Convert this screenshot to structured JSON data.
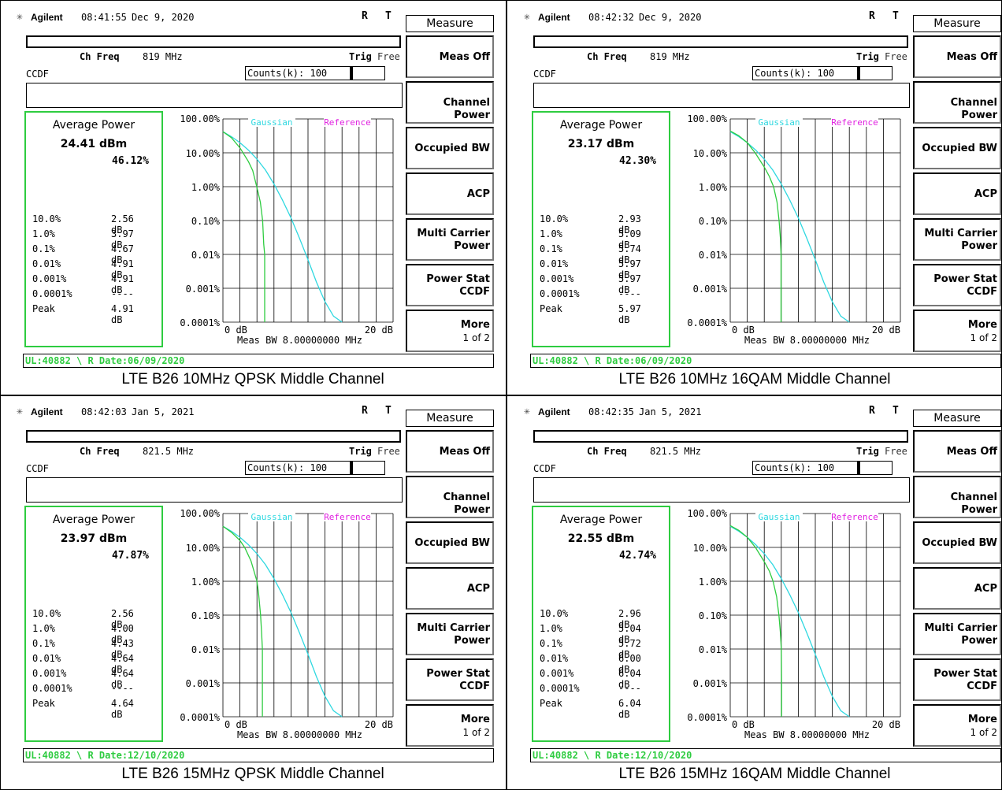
{
  "panels": [
    {
      "brand": "Agilent",
      "time": "08:41:55",
      "date": "Dec 9, 2020",
      "r": "R",
      "t": "T",
      "ch_freq_label": "Ch Freq",
      "ch_freq_value": "819 MHz",
      "trig_label": "Trig",
      "trig_value": "Free",
      "mode_label": "CCDF",
      "counts_label": "Counts(k): 100",
      "avg_power_label": "Average Power",
      "avg_power_value": "24.41 dBm",
      "avg_pct": "46.12%",
      "stats": [
        {
          "k": "10.0%",
          "v": "2.56 dB"
        },
        {
          "k": "1.0%",
          "v": "3.97 dB"
        },
        {
          "k": "0.1%",
          "v": "4.67 dB"
        },
        {
          "k": "0.01%",
          "v": "4.91 dB"
        },
        {
          "k": "0.001%",
          "v": "4.91 dB"
        },
        {
          "k": "0.0001%",
          "v": "----"
        },
        {
          "k": "Peak",
          "v": "4.91 dB"
        }
      ],
      "ul_text": "UL:40882 \\ R Date:06/09/2020",
      "caption": "LTE B26 10MHz QPSK Middle Channel"
    },
    {
      "brand": "Agilent",
      "time": "08:42:32",
      "date": "Dec 9, 2020",
      "r": "R",
      "t": "T",
      "ch_freq_label": "Ch Freq",
      "ch_freq_value": "819 MHz",
      "trig_label": "Trig",
      "trig_value": "Free",
      "mode_label": "CCDF",
      "counts_label": "Counts(k): 100",
      "avg_power_label": "Average Power",
      "avg_power_value": "23.17 dBm",
      "avg_pct": "42.30%",
      "stats": [
        {
          "k": "10.0%",
          "v": "2.93 dB"
        },
        {
          "k": "1.0%",
          "v": "5.09 dB"
        },
        {
          "k": "0.1%",
          "v": "5.74 dB"
        },
        {
          "k": "0.01%",
          "v": "5.97 dB"
        },
        {
          "k": "0.001%",
          "v": "5.97 dB"
        },
        {
          "k": "0.0001%",
          "v": "----"
        },
        {
          "k": "Peak",
          "v": "5.97 dB"
        }
      ],
      "ul_text": "UL:40882 \\ R Date:06/09/2020",
      "caption": "LTE B26 10MHz 16QAM Middle Channel"
    },
    {
      "brand": "Agilent",
      "time": "08:42:03",
      "date": "Jan 5, 2021",
      "r": "R",
      "t": "T",
      "ch_freq_label": "Ch Freq",
      "ch_freq_value": "821.5 MHz",
      "trig_label": "Trig",
      "trig_value": "Free",
      "mode_label": "CCDF",
      "counts_label": "Counts(k): 100",
      "avg_power_label": "Average Power",
      "avg_power_value": "23.97 dBm",
      "avg_pct": "47.87%",
      "stats": [
        {
          "k": "10.0%",
          "v": "2.56 dB"
        },
        {
          "k": "1.0%",
          "v": "4.00 dB"
        },
        {
          "k": "0.1%",
          "v": "4.43 dB"
        },
        {
          "k": "0.01%",
          "v": "4.64 dB"
        },
        {
          "k": "0.001%",
          "v": "4.64 dB"
        },
        {
          "k": "0.0001%",
          "v": "----"
        },
        {
          "k": "Peak",
          "v": "4.64 dB"
        }
      ],
      "ul_text": "UL:40882 \\ R Date:12/10/2020",
      "caption": "LTE B26 15MHz QPSK Middle Channel"
    },
    {
      "brand": "Agilent",
      "time": "08:42:35",
      "date": "Jan 5, 2021",
      "r": "R",
      "t": "T",
      "ch_freq_label": "Ch Freq",
      "ch_freq_value": "821.5 MHz",
      "trig_label": "Trig",
      "trig_value": "Free",
      "mode_label": "CCDF",
      "counts_label": "Counts(k): 100",
      "avg_power_label": "Average Power",
      "avg_power_value": "22.55 dBm",
      "avg_pct": "42.74%",
      "stats": [
        {
          "k": "10.0%",
          "v": "2.96 dB"
        },
        {
          "k": "1.0%",
          "v": "5.04 dB"
        },
        {
          "k": "0.1%",
          "v": "5.72 dB"
        },
        {
          "k": "0.01%",
          "v": "6.00 dB"
        },
        {
          "k": "0.001%",
          "v": "6.04 dB"
        },
        {
          "k": "0.0001%",
          "v": "----"
        },
        {
          "k": "Peak",
          "v": "6.04 dB"
        }
      ],
      "ul_text": "UL:40882 \\ R Date:12/10/2020",
      "caption": "LTE B26 15MHz 16QAM Middle Channel"
    }
  ],
  "menu": {
    "title": "Measure",
    "buttons": [
      {
        "l1": "",
        "l2": "Meas Off"
      },
      {
        "l1": "",
        "l2": "Channel Power"
      },
      {
        "l1": "",
        "l2": "Occupied BW"
      },
      {
        "l1": "",
        "l2": "ACP"
      },
      {
        "l1": "Multi Carrier",
        "l2": "Power"
      },
      {
        "l1": "Power Stat",
        "l2": "CCDF"
      },
      {
        "l1": "More",
        "l2": "1 of 2"
      }
    ]
  },
  "colors": {
    "gaussian": "#2fd8e0",
    "reference": "#e020e0",
    "measured": "#2ecc40",
    "ul_text": "#2ecc40"
  },
  "chart_data": [
    {
      "type": "line",
      "title": "",
      "xlabel": "Meas BW 8.00000000 MHz",
      "ylabel": "",
      "xlim": [
        0,
        20
      ],
      "yscale": "log",
      "ylim": [
        0.0001,
        100
      ],
      "x_tick_labels": [
        "0 dB",
        "20 dB"
      ],
      "y_tick_labels": [
        "100.00%",
        "10.00%",
        "1.00%",
        "0.10%",
        "0.01%",
        "0.001%",
        "0.0001%"
      ],
      "legend": [
        "Gaussian",
        "Reference"
      ],
      "legend_placement": "top",
      "series": [
        {
          "name": "Gaussian",
          "x": [
            0,
            1,
            2,
            3,
            4,
            5,
            6,
            7,
            8,
            9,
            10,
            11,
            12,
            13,
            14
          ],
          "y": [
            42,
            30,
            20,
            12,
            6.5,
            3.1,
            1.2,
            0.4,
            0.12,
            0.03,
            0.007,
            0.0015,
            0.0004,
            0.00015,
            0.0001
          ]
        },
        {
          "x": [
            0,
            1,
            2,
            3,
            3.5,
            3.97,
            4.4,
            4.67,
            4.8,
            4.91,
            4.91
          ],
          "y": [
            42,
            28,
            14,
            5.5,
            3,
            1.0,
            0.35,
            0.1,
            0.02,
            0.01,
            0.0001
          ]
        }
      ]
    },
    {
      "type": "line",
      "title": "",
      "xlabel": "Meas BW 8.00000000 MHz",
      "ylabel": "",
      "xlim": [
        0,
        20
      ],
      "yscale": "log",
      "ylim": [
        0.0001,
        100
      ],
      "x_tick_labels": [
        "0 dB",
        "20 dB"
      ],
      "y_tick_labels": [
        "100.00%",
        "10.00%",
        "1.00%",
        "0.10%",
        "0.01%",
        "0.001%",
        "0.0001%"
      ],
      "legend": [
        "Gaussian",
        "Reference"
      ],
      "legend_placement": "top",
      "series": [
        {
          "name": "Gaussian",
          "x": [
            0,
            1,
            2,
            3,
            4,
            5,
            6,
            7,
            8,
            9,
            10,
            11,
            12,
            13,
            14
          ],
          "y": [
            42,
            30,
            20,
            12,
            6.5,
            3.1,
            1.2,
            0.4,
            0.12,
            0.03,
            0.007,
            0.0015,
            0.0004,
            0.00015,
            0.0001
          ]
        },
        {
          "x": [
            0,
            1,
            2,
            2.93,
            4,
            4.6,
            5.09,
            5.5,
            5.74,
            5.9,
            5.97,
            5.97
          ],
          "y": [
            44,
            32,
            20,
            10,
            3.8,
            2,
            1.0,
            0.35,
            0.1,
            0.03,
            0.01,
            0.0001
          ]
        }
      ]
    },
    {
      "type": "line",
      "title": "",
      "xlabel": "Meas BW 8.00000000 MHz",
      "ylabel": "",
      "xlim": [
        0,
        20
      ],
      "yscale": "log",
      "ylim": [
        0.0001,
        100
      ],
      "x_tick_labels": [
        "0 dB",
        "20 dB"
      ],
      "y_tick_labels": [
        "100.00%",
        "10.00%",
        "1.00%",
        "0.10%",
        "0.01%",
        "0.001%",
        "0.0001%"
      ],
      "legend": [
        "Gaussian",
        "Reference"
      ],
      "legend_placement": "top",
      "series": [
        {
          "name": "Gaussian",
          "x": [
            0,
            1,
            2,
            3,
            4,
            5,
            6,
            7,
            8,
            9,
            10,
            11,
            12,
            13,
            14
          ],
          "y": [
            42,
            30,
            20,
            12,
            6.5,
            3.1,
            1.2,
            0.4,
            0.12,
            0.03,
            0.007,
            0.0015,
            0.0004,
            0.00015,
            0.0001
          ]
        },
        {
          "x": [
            0,
            1,
            2,
            2.56,
            3.3,
            4.0,
            4.2,
            4.43,
            4.55,
            4.64,
            4.64
          ],
          "y": [
            42,
            28,
            16,
            10,
            4,
            1.0,
            0.4,
            0.1,
            0.03,
            0.01,
            0.0001
          ]
        }
      ]
    },
    {
      "type": "line",
      "title": "",
      "xlabel": "Meas BW 8.00000000 MHz",
      "ylabel": "",
      "xlim": [
        0,
        20
      ],
      "yscale": "log",
      "ylim": [
        0.0001,
        100
      ],
      "x_tick_labels": [
        "0 dB",
        "20 dB"
      ],
      "y_tick_labels": [
        "100.00%",
        "10.00%",
        "1.00%",
        "0.10%",
        "0.01%",
        "0.001%",
        "0.0001%"
      ],
      "legend": [
        "Gaussian",
        "Reference"
      ],
      "legend_placement": "top",
      "series": [
        {
          "name": "Gaussian",
          "x": [
            0,
            1,
            2,
            3,
            4,
            5,
            6,
            7,
            8,
            9,
            10,
            11,
            12,
            13,
            14
          ],
          "y": [
            42,
            30,
            20,
            12,
            6.5,
            3.1,
            1.2,
            0.4,
            0.12,
            0.03,
            0.007,
            0.0015,
            0.0004,
            0.00015,
            0.0001
          ]
        },
        {
          "x": [
            0,
            1,
            2,
            2.96,
            4,
            4.6,
            5.04,
            5.45,
            5.72,
            5.9,
            6.0,
            6.04,
            6.04
          ],
          "y": [
            44,
            32,
            20,
            10,
            3.8,
            2,
            1.0,
            0.35,
            0.1,
            0.03,
            0.01,
            0.001,
            0.0001
          ]
        }
      ]
    }
  ]
}
